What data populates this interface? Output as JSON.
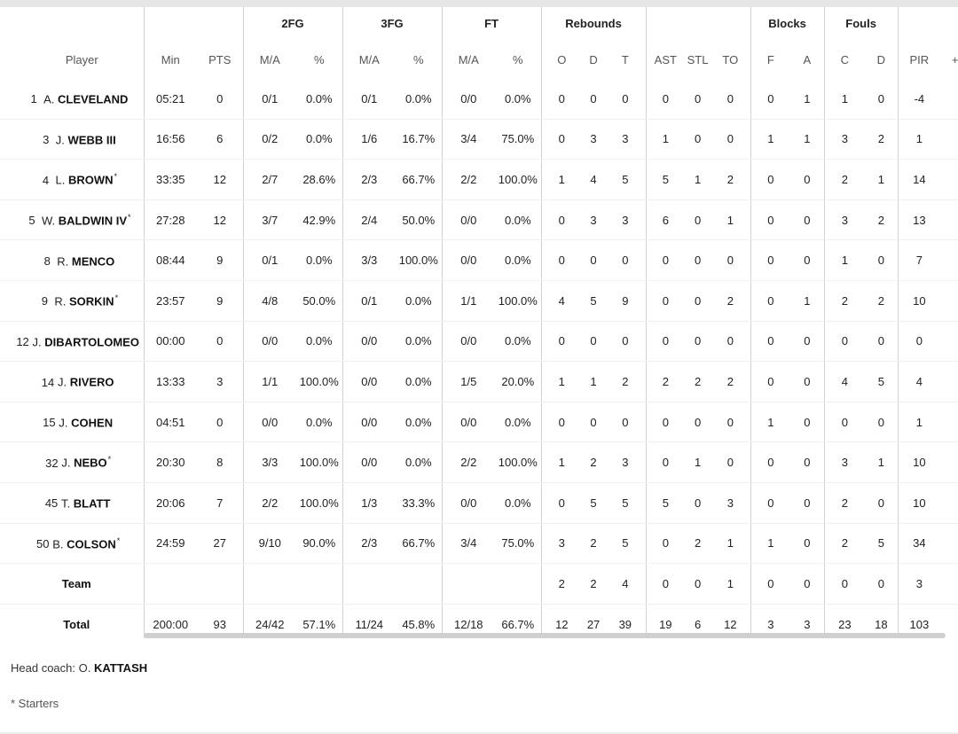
{
  "groups": {
    "fg2": "2FG",
    "fg3": "3FG",
    "ft": "FT",
    "rebounds": "Rebounds",
    "blocks": "Blocks",
    "fouls": "Fouls"
  },
  "headers": {
    "player": "Player",
    "min": "Min",
    "pts": "PTS",
    "fg2_ma": "M/A",
    "fg2_pct": "%",
    "fg3_ma": "M/A",
    "fg3_pct": "%",
    "ft_ma": "M/A",
    "ft_pct": "%",
    "o": "O",
    "d": "D",
    "t": "T",
    "ast": "AST",
    "stl": "STL",
    "to": "TO",
    "bf": "F",
    "ba": "A",
    "fc": "C",
    "fd": "D",
    "pir": "PIR",
    "pm": "+/-"
  },
  "players": [
    {
      "num": "1",
      "initial": "A.",
      "name": "CLEVELAND",
      "starter": "",
      "min": "05:21",
      "pts": "0",
      "fg2": "0/1",
      "fg2p": "0.0%",
      "fg3": "0/1",
      "fg3p": "0.0%",
      "ft": "0/0",
      "ftp": "0.0%",
      "o": "0",
      "d": "0",
      "t": "0",
      "ast": "0",
      "stl": "0",
      "to": "0",
      "bf": "0",
      "ba": "1",
      "fc": "1",
      "fd": "0",
      "pir": "-4"
    },
    {
      "num": "3",
      "initial": "J.",
      "name": "WEBB III",
      "starter": "",
      "min": "16:56",
      "pts": "6",
      "fg2": "0/2",
      "fg2p": "0.0%",
      "fg3": "1/6",
      "fg3p": "16.7%",
      "ft": "3/4",
      "ftp": "75.0%",
      "o": "0",
      "d": "3",
      "t": "3",
      "ast": "1",
      "stl": "0",
      "to": "0",
      "bf": "1",
      "ba": "1",
      "fc": "3",
      "fd": "2",
      "pir": "1"
    },
    {
      "num": "4",
      "initial": "L.",
      "name": "BROWN",
      "starter": "*",
      "min": "33:35",
      "pts": "12",
      "fg2": "2/7",
      "fg2p": "28.6%",
      "fg3": "2/3",
      "fg3p": "66.7%",
      "ft": "2/2",
      "ftp": "100.0%",
      "o": "1",
      "d": "4",
      "t": "5",
      "ast": "5",
      "stl": "1",
      "to": "2",
      "bf": "0",
      "ba": "0",
      "fc": "2",
      "fd": "1",
      "pir": "14"
    },
    {
      "num": "5",
      "initial": "W.",
      "name": "BALDWIN IV",
      "starter": "*",
      "min": "27:28",
      "pts": "12",
      "fg2": "3/7",
      "fg2p": "42.9%",
      "fg3": "2/4",
      "fg3p": "50.0%",
      "ft": "0/0",
      "ftp": "0.0%",
      "o": "0",
      "d": "3",
      "t": "3",
      "ast": "6",
      "stl": "0",
      "to": "1",
      "bf": "0",
      "ba": "0",
      "fc": "3",
      "fd": "2",
      "pir": "13"
    },
    {
      "num": "8",
      "initial": "R.",
      "name": "MENCO",
      "starter": "",
      "min": "08:44",
      "pts": "9",
      "fg2": "0/1",
      "fg2p": "0.0%",
      "fg3": "3/3",
      "fg3p": "100.0%",
      "ft": "0/0",
      "ftp": "0.0%",
      "o": "0",
      "d": "0",
      "t": "0",
      "ast": "0",
      "stl": "0",
      "to": "0",
      "bf": "0",
      "ba": "0",
      "fc": "1",
      "fd": "0",
      "pir": "7"
    },
    {
      "num": "9",
      "initial": "R.",
      "name": "SORKIN",
      "starter": "*",
      "min": "23:57",
      "pts": "9",
      "fg2": "4/8",
      "fg2p": "50.0%",
      "fg3": "0/1",
      "fg3p": "0.0%",
      "ft": "1/1",
      "ftp": "100.0%",
      "o": "4",
      "d": "5",
      "t": "9",
      "ast": "0",
      "stl": "0",
      "to": "2",
      "bf": "0",
      "ba": "1",
      "fc": "2",
      "fd": "2",
      "pir": "10"
    },
    {
      "num": "12",
      "initial": "J.",
      "name": "DIBARTOLOMEO",
      "starter": "",
      "min": "00:00",
      "pts": "0",
      "fg2": "0/0",
      "fg2p": "0.0%",
      "fg3": "0/0",
      "fg3p": "0.0%",
      "ft": "0/0",
      "ftp": "0.0%",
      "o": "0",
      "d": "0",
      "t": "0",
      "ast": "0",
      "stl": "0",
      "to": "0",
      "bf": "0",
      "ba": "0",
      "fc": "0",
      "fd": "0",
      "pir": "0"
    },
    {
      "num": "14",
      "initial": "J.",
      "name": "RIVERO",
      "starter": "",
      "min": "13:33",
      "pts": "3",
      "fg2": "1/1",
      "fg2p": "100.0%",
      "fg3": "0/0",
      "fg3p": "0.0%",
      "ft": "1/5",
      "ftp": "20.0%",
      "o": "1",
      "d": "1",
      "t": "2",
      "ast": "2",
      "stl": "2",
      "to": "2",
      "bf": "0",
      "ba": "0",
      "fc": "4",
      "fd": "5",
      "pir": "4"
    },
    {
      "num": "15",
      "initial": "J.",
      "name": "COHEN",
      "starter": "",
      "min": "04:51",
      "pts": "0",
      "fg2": "0/0",
      "fg2p": "0.0%",
      "fg3": "0/0",
      "fg3p": "0.0%",
      "ft": "0/0",
      "ftp": "0.0%",
      "o": "0",
      "d": "0",
      "t": "0",
      "ast": "0",
      "stl": "0",
      "to": "0",
      "bf": "1",
      "ba": "0",
      "fc": "0",
      "fd": "0",
      "pir": "1"
    },
    {
      "num": "32",
      "initial": "J.",
      "name": "NEBO",
      "starter": "*",
      "min": "20:30",
      "pts": "8",
      "fg2": "3/3",
      "fg2p": "100.0%",
      "fg3": "0/0",
      "fg3p": "0.0%",
      "ft": "2/2",
      "ftp": "100.0%",
      "o": "1",
      "d": "2",
      "t": "3",
      "ast": "0",
      "stl": "1",
      "to": "0",
      "bf": "0",
      "ba": "0",
      "fc": "3",
      "fd": "1",
      "pir": "10"
    },
    {
      "num": "45",
      "initial": "T.",
      "name": "BLATT",
      "starter": "",
      "min": "20:06",
      "pts": "7",
      "fg2": "2/2",
      "fg2p": "100.0%",
      "fg3": "1/3",
      "fg3p": "33.3%",
      "ft": "0/0",
      "ftp": "0.0%",
      "o": "0",
      "d": "5",
      "t": "5",
      "ast": "5",
      "stl": "0",
      "to": "3",
      "bf": "0",
      "ba": "0",
      "fc": "2",
      "fd": "0",
      "pir": "10"
    },
    {
      "num": "50",
      "initial": "B.",
      "name": "COLSON",
      "starter": "*",
      "min": "24:59",
      "pts": "27",
      "fg2": "9/10",
      "fg2p": "90.0%",
      "fg3": "2/3",
      "fg3p": "66.7%",
      "ft": "3/4",
      "ftp": "75.0%",
      "o": "3",
      "d": "2",
      "t": "5",
      "ast": "0",
      "stl": "2",
      "to": "1",
      "bf": "1",
      "ba": "0",
      "fc": "2",
      "fd": "5",
      "pir": "34"
    }
  ],
  "team": {
    "label": "Team",
    "min": "",
    "pts": "",
    "fg2": "",
    "fg2p": "",
    "fg3": "",
    "fg3p": "",
    "ft": "",
    "ftp": "",
    "o": "2",
    "d": "2",
    "t": "4",
    "ast": "0",
    "stl": "0",
    "to": "1",
    "bf": "0",
    "ba": "0",
    "fc": "0",
    "fd": "0",
    "pir": "3"
  },
  "total": {
    "label": "Total",
    "min": "200:00",
    "pts": "93",
    "fg2": "24/42",
    "fg2p": "57.1%",
    "fg3": "11/24",
    "fg3p": "45.8%",
    "ft": "12/18",
    "ftp": "66.7%",
    "o": "12",
    "d": "27",
    "t": "39",
    "ast": "19",
    "stl": "6",
    "to": "12",
    "bf": "3",
    "ba": "3",
    "fc": "23",
    "fd": "18",
    "pir": "103"
  },
  "footer": {
    "coach_prefix": "Head coach: O.",
    "coach_name": "KATTASH",
    "starters_note": "* Starters"
  },
  "colors": {
    "divider": "#d2d2d2",
    "scrollbar": "#d0d0d0",
    "topbar": "#e6e6e6"
  }
}
